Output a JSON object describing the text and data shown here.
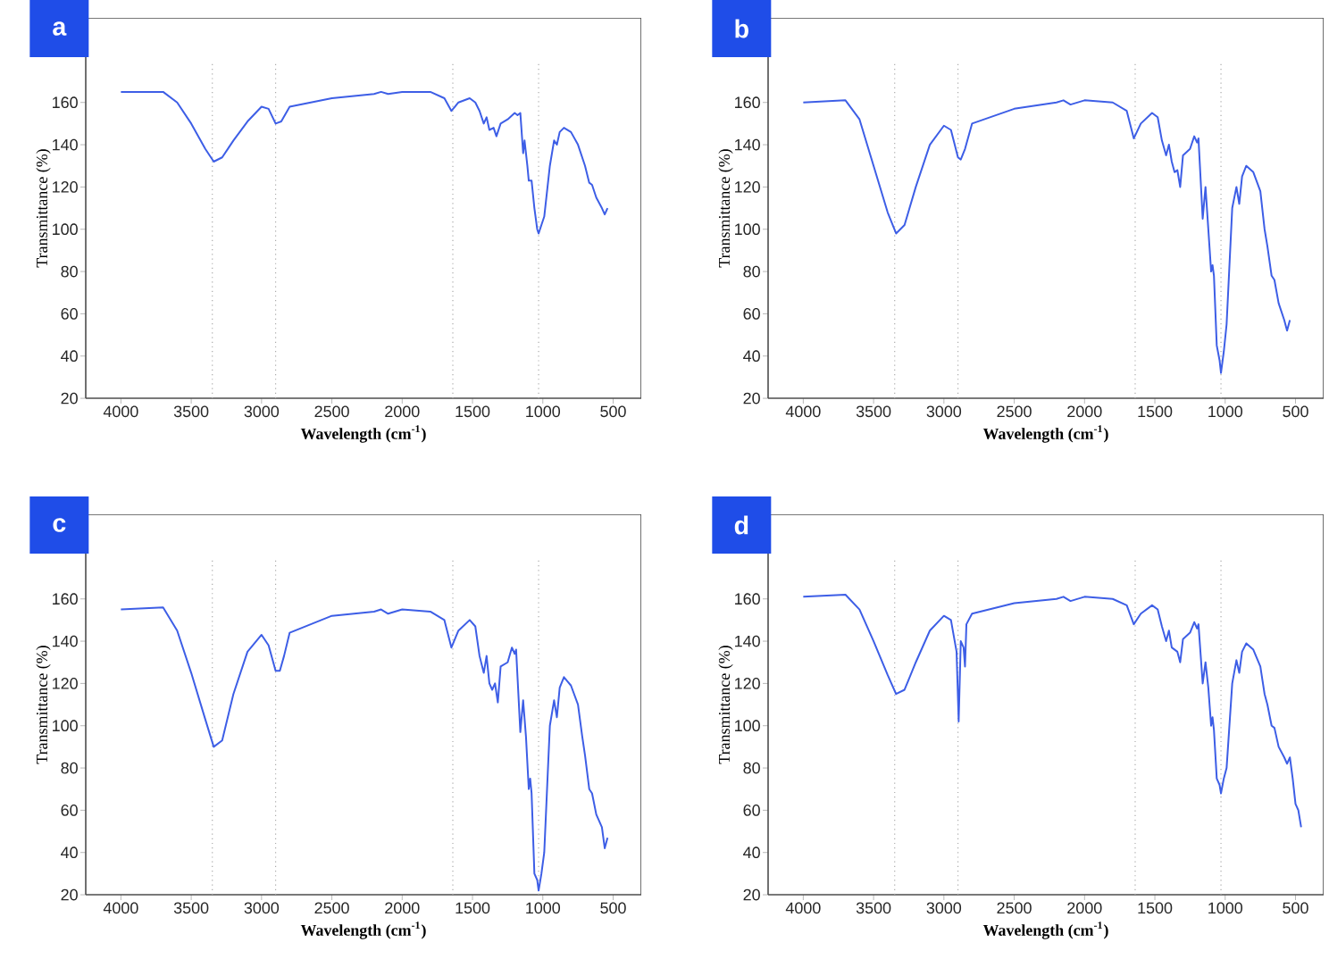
{
  "chart_data": [
    {
      "type": "line",
      "title": "a",
      "xlabel": "Wavelength (cm$^{-1}$)",
      "ylabel": "Transmittance (%)",
      "xlim": [
        4250,
        300
      ],
      "ylim": [
        20,
        200
      ],
      "xticks": [
        4000,
        3500,
        3000,
        2500,
        2000,
        1500,
        1000,
        500
      ],
      "yticks": [
        20,
        40,
        60,
        80,
        100,
        120,
        140,
        160
      ],
      "grid": false,
      "marker": "none",
      "line_style": "solid",
      "ref_lines": [
        {
          "axis": "x",
          "value": 3350,
          "color": "#aaaaaa",
          "line_style": "dotted"
        },
        {
          "axis": "x",
          "value": 2900,
          "color": "#aaaaaa",
          "line_style": "dotted"
        },
        {
          "axis": "x",
          "value": 1640,
          "color": "#aaaaaa",
          "line_style": "dotted"
        },
        {
          "axis": "x",
          "value": 1030,
          "color": "#aaaaaa",
          "line_style": "dotted"
        }
      ],
      "series": [
        {
          "color": "#3d5ee6",
          "x": [
            4000,
            3700,
            3600,
            3500,
            3400,
            3340,
            3280,
            3200,
            3100,
            3000,
            2950,
            2900,
            2860,
            2800,
            2500,
            2200,
            2150,
            2100,
            2000,
            1800,
            1700,
            1650,
            1600,
            1520,
            1480,
            1450,
            1420,
            1400,
            1380,
            1350,
            1330,
            1300,
            1250,
            1200,
            1180,
            1160,
            1140,
            1130,
            1110,
            1100,
            1080,
            1060,
            1040,
            1030,
            1010,
            990,
            950,
            920,
            900,
            880,
            850,
            800,
            750,
            700,
            670,
            650,
            620,
            580,
            560,
            540
          ],
          "values": [
            165,
            165,
            160,
            150,
            138,
            132,
            134,
            142,
            151,
            158,
            157,
            150,
            151,
            158,
            162,
            164,
            165,
            164,
            165,
            165,
            162,
            156,
            160,
            162,
            160,
            156,
            150,
            153,
            147,
            148,
            144,
            150,
            152,
            155,
            154,
            155,
            136,
            142,
            130,
            123,
            123,
            110,
            100,
            98,
            102,
            106,
            130,
            142,
            140,
            146,
            148,
            146,
            140,
            130,
            122,
            121,
            115,
            110,
            107,
            110
          ]
        }
      ]
    },
    {
      "type": "line",
      "title": "b",
      "xlabel": "Wavelength (cm$^{-1}$)",
      "ylabel": "Transmittance (%)",
      "xlim": [
        4250,
        300
      ],
      "ylim": [
        20,
        200
      ],
      "xticks": [
        4000,
        3500,
        3000,
        2500,
        2000,
        1500,
        1000,
        500
      ],
      "yticks": [
        20,
        40,
        60,
        80,
        100,
        120,
        140,
        160
      ],
      "grid": false,
      "marker": "none",
      "line_style": "solid",
      "ref_lines": [
        {
          "axis": "x",
          "value": 3350,
          "color": "#aaaaaa",
          "line_style": "dotted"
        },
        {
          "axis": "x",
          "value": 2900,
          "color": "#aaaaaa",
          "line_style": "dotted"
        },
        {
          "axis": "x",
          "value": 1640,
          "color": "#aaaaaa",
          "line_style": "dotted"
        },
        {
          "axis": "x",
          "value": 1030,
          "color": "#aaaaaa",
          "line_style": "dotted"
        }
      ],
      "series": [
        {
          "color": "#3d5ee6",
          "x": [
            4000,
            3700,
            3600,
            3500,
            3400,
            3340,
            3280,
            3200,
            3100,
            3000,
            2950,
            2900,
            2880,
            2850,
            2800,
            2500,
            2200,
            2150,
            2100,
            2000,
            1800,
            1700,
            1650,
            1600,
            1520,
            1480,
            1450,
            1420,
            1400,
            1380,
            1360,
            1340,
            1320,
            1300,
            1250,
            1220,
            1200,
            1190,
            1160,
            1140,
            1120,
            1100,
            1090,
            1080,
            1060,
            1040,
            1030,
            1010,
            990,
            950,
            920,
            900,
            880,
            850,
            800,
            750,
            720,
            700,
            670,
            650,
            620,
            580,
            560,
            540
          ],
          "values": [
            160,
            161,
            152,
            130,
            108,
            98,
            102,
            120,
            140,
            149,
            147,
            134,
            133,
            138,
            150,
            157,
            160,
            161,
            159,
            161,
            160,
            156,
            143,
            150,
            155,
            153,
            142,
            135,
            140,
            132,
            127,
            128,
            120,
            135,
            138,
            144,
            141,
            143,
            105,
            120,
            100,
            80,
            83,
            78,
            45,
            38,
            32,
            42,
            55,
            110,
            120,
            112,
            125,
            130,
            127,
            118,
            100,
            92,
            78,
            76,
            65,
            57,
            52,
            57
          ]
        }
      ]
    },
    {
      "type": "line",
      "title": "c",
      "xlabel": "Wavelength (cm$^{-1}$)",
      "ylabel": "Transmittance (%)",
      "xlim": [
        4250,
        300
      ],
      "ylim": [
        20,
        200
      ],
      "xticks": [
        4000,
        3500,
        3000,
        2500,
        2000,
        1500,
        1000,
        500
      ],
      "yticks": [
        20,
        40,
        60,
        80,
        100,
        120,
        140,
        160
      ],
      "grid": false,
      "marker": "none",
      "line_style": "solid",
      "ref_lines": [
        {
          "axis": "x",
          "value": 3350,
          "color": "#aaaaaa",
          "line_style": "dotted"
        },
        {
          "axis": "x",
          "value": 2900,
          "color": "#aaaaaa",
          "line_style": "dotted"
        },
        {
          "axis": "x",
          "value": 1640,
          "color": "#aaaaaa",
          "line_style": "dotted"
        },
        {
          "axis": "x",
          "value": 1030,
          "color": "#aaaaaa",
          "line_style": "dotted"
        }
      ],
      "series": [
        {
          "color": "#3d5ee6",
          "x": [
            4000,
            3700,
            3600,
            3500,
            3400,
            3340,
            3280,
            3200,
            3100,
            3000,
            2950,
            2900,
            2870,
            2840,
            2800,
            2500,
            2200,
            2150,
            2100,
            2000,
            1800,
            1700,
            1650,
            1600,
            1520,
            1480,
            1450,
            1420,
            1400,
            1380,
            1360,
            1340,
            1320,
            1300,
            1250,
            1220,
            1200,
            1190,
            1160,
            1140,
            1120,
            1100,
            1090,
            1080,
            1060,
            1040,
            1030,
            1010,
            990,
            950,
            920,
            900,
            880,
            850,
            800,
            750,
            720,
            700,
            670,
            650,
            620,
            580,
            560,
            540
          ],
          "values": [
            155,
            156,
            145,
            125,
            103,
            90,
            93,
            115,
            135,
            143,
            138,
            126,
            126,
            133,
            144,
            152,
            154,
            155,
            153,
            155,
            154,
            150,
            137,
            145,
            150,
            147,
            133,
            125,
            133,
            120,
            117,
            120,
            111,
            128,
            130,
            137,
            134,
            136,
            97,
            112,
            95,
            70,
            75,
            68,
            30,
            27,
            22,
            30,
            40,
            100,
            112,
            104,
            118,
            123,
            119,
            110,
            95,
            86,
            70,
            68,
            58,
            52,
            42,
            47
          ]
        }
      ]
    },
    {
      "type": "line",
      "title": "d",
      "xlabel": "Wavelength (cm$^{-1}$)",
      "ylabel": "Transmittance (%)",
      "xlim": [
        4250,
        300
      ],
      "ylim": [
        20,
        200
      ],
      "xticks": [
        4000,
        3500,
        3000,
        2500,
        2000,
        1500,
        1000,
        500
      ],
      "yticks": [
        20,
        40,
        60,
        80,
        100,
        120,
        140,
        160
      ],
      "grid": false,
      "marker": "none",
      "line_style": "solid",
      "ref_lines": [
        {
          "axis": "x",
          "value": 3350,
          "color": "#aaaaaa",
          "line_style": "dotted"
        },
        {
          "axis": "x",
          "value": 2900,
          "color": "#aaaaaa",
          "line_style": "dotted"
        },
        {
          "axis": "x",
          "value": 1640,
          "color": "#aaaaaa",
          "line_style": "dotted"
        },
        {
          "axis": "x",
          "value": 1030,
          "color": "#aaaaaa",
          "line_style": "dotted"
        }
      ],
      "series": [
        {
          "color": "#3d5ee6",
          "x": [
            4000,
            3700,
            3600,
            3500,
            3400,
            3340,
            3280,
            3200,
            3100,
            3000,
            2950,
            2910,
            2895,
            2880,
            2860,
            2850,
            2840,
            2800,
            2500,
            2200,
            2150,
            2100,
            2000,
            1800,
            1700,
            1650,
            1600,
            1520,
            1480,
            1450,
            1420,
            1400,
            1380,
            1360,
            1340,
            1320,
            1300,
            1250,
            1220,
            1200,
            1190,
            1160,
            1140,
            1120,
            1100,
            1090,
            1080,
            1060,
            1040,
            1030,
            1010,
            990,
            950,
            920,
            900,
            880,
            850,
            800,
            750,
            720,
            700,
            670,
            650,
            620,
            580,
            560,
            540,
            520,
            500,
            480,
            460
          ],
          "values": [
            161,
            162,
            155,
            140,
            124,
            115,
            117,
            130,
            145,
            152,
            150,
            135,
            102,
            140,
            137,
            128,
            148,
            153,
            158,
            160,
            161,
            159,
            161,
            160,
            157,
            148,
            153,
            157,
            155,
            147,
            140,
            145,
            137,
            136,
            135,
            130,
            141,
            144,
            149,
            146,
            148,
            120,
            130,
            118,
            100,
            104,
            98,
            75,
            72,
            68,
            75,
            80,
            120,
            131,
            125,
            135,
            139,
            136,
            128,
            115,
            110,
            100,
            99,
            90,
            85,
            82,
            85,
            75,
            63,
            60,
            52
          ]
        }
      ]
    }
  ]
}
